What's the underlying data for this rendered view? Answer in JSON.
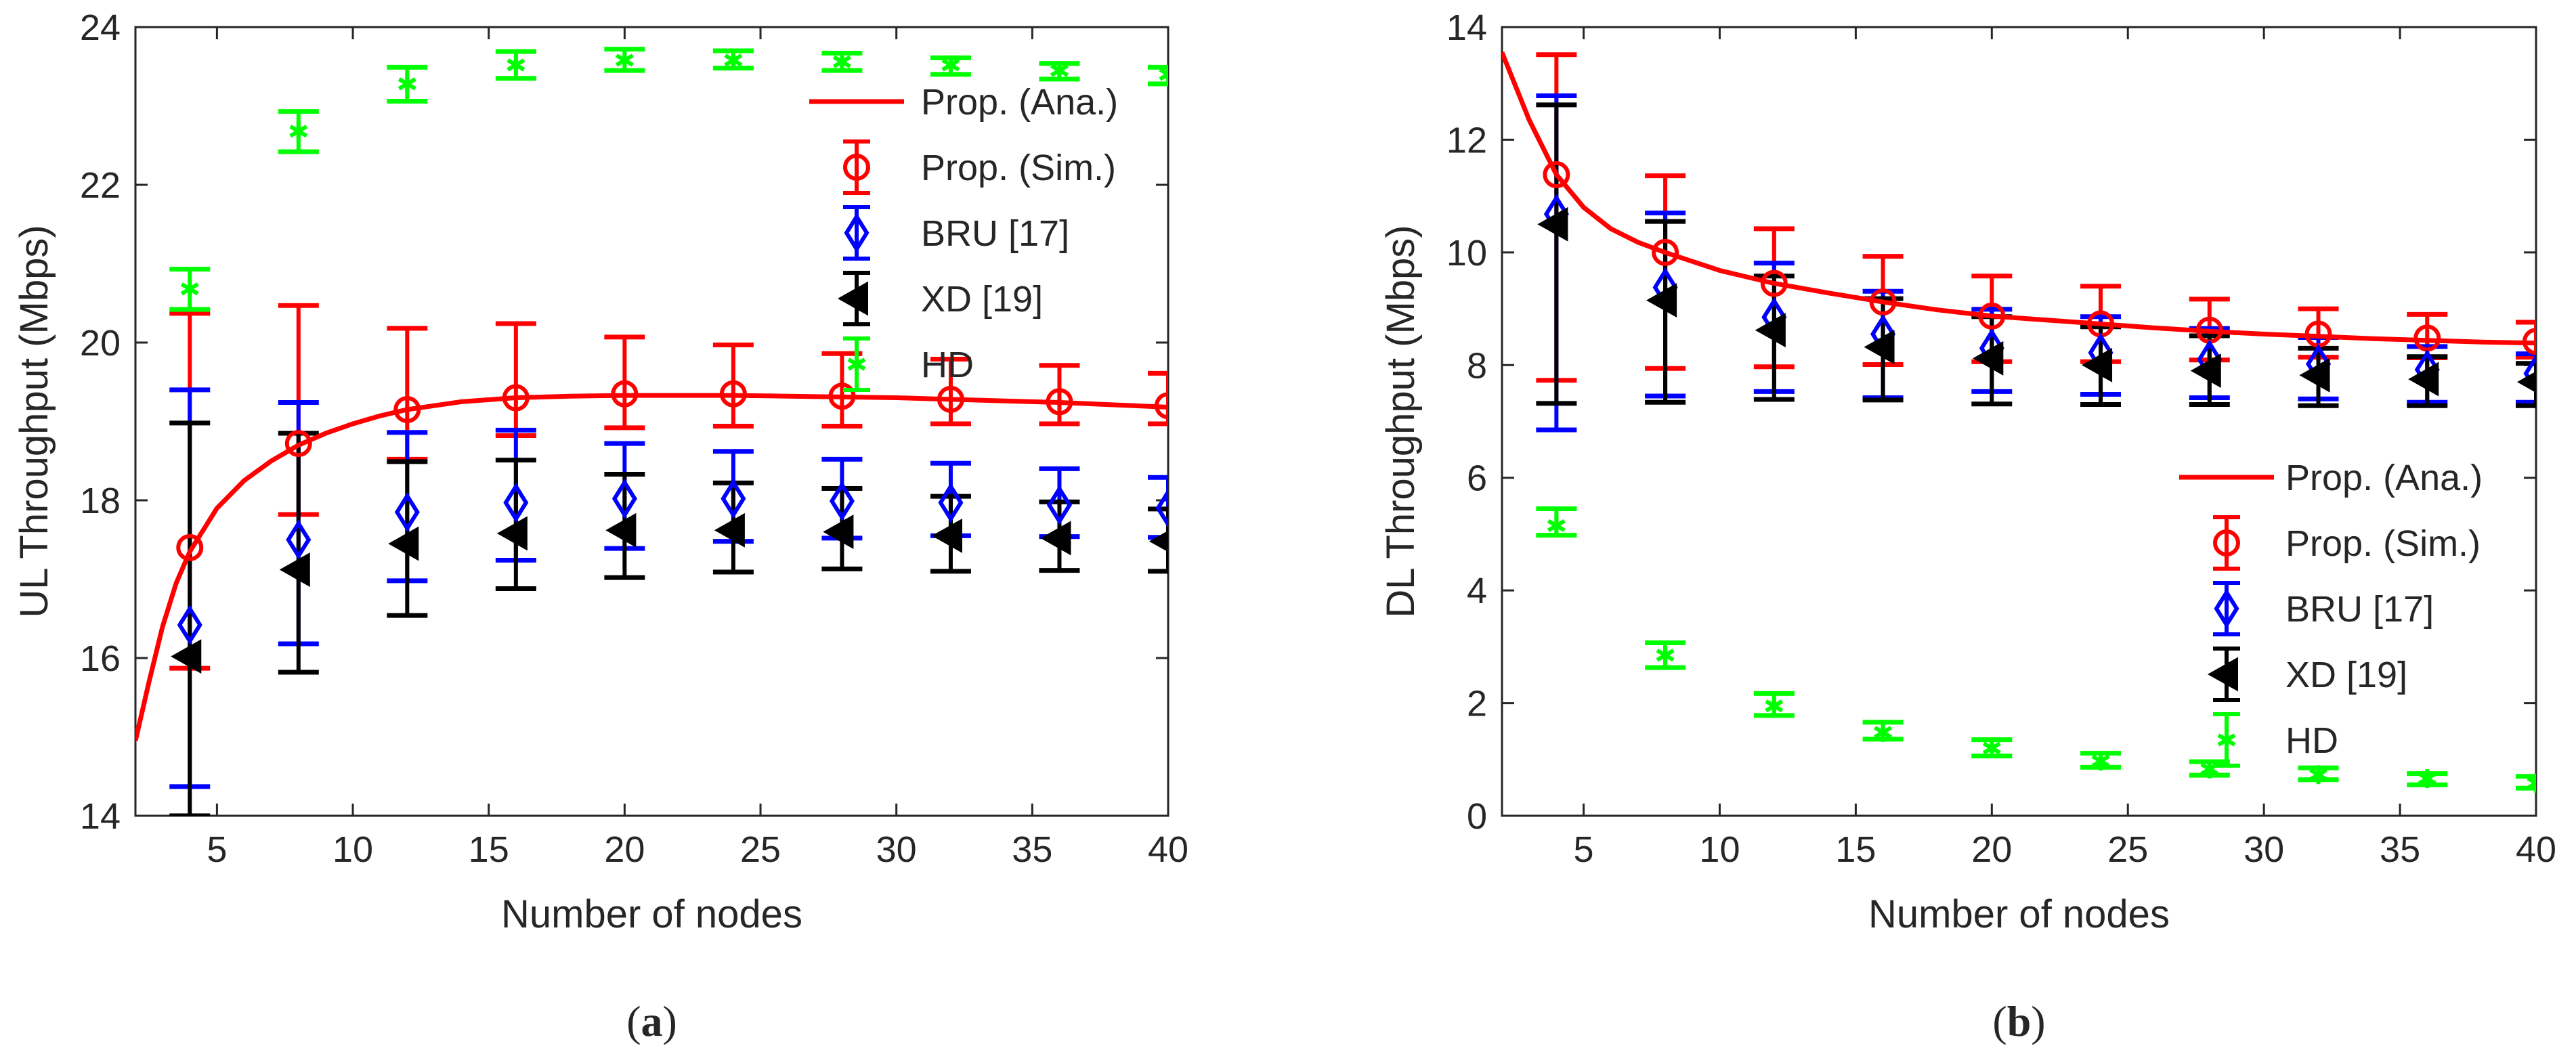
{
  "chart_data": [
    {
      "type": "line",
      "panel_label": "(a)",
      "panel_label_bold": "a",
      "xlabel": "Number of nodes",
      "ylabel": "UL Throughput (Mbps)",
      "xlim": [
        2,
        40
      ],
      "ylim": [
        14,
        24
      ],
      "xticks": [
        5,
        10,
        15,
        20,
        25,
        30,
        35,
        40
      ],
      "yticks": [
        14,
        16,
        18,
        20,
        22,
        24
      ],
      "legend_position": "top-right",
      "colors": {
        "prop": "#ff0000",
        "bru": "#0000ff",
        "xd": "#000000",
        "hd": "#00ff00"
      },
      "analytic": {
        "name": "Prop. (Ana.)",
        "x": [
          2,
          2.5,
          3,
          3.5,
          4,
          5,
          6,
          7,
          8,
          9,
          10,
          11,
          12,
          14,
          16,
          18,
          20,
          22,
          24,
          26,
          28,
          30,
          32,
          34,
          36,
          38,
          40
        ],
        "y": [
          14.95,
          15.7,
          16.4,
          16.95,
          17.35,
          17.9,
          18.25,
          18.5,
          18.7,
          18.85,
          18.97,
          19.07,
          19.15,
          19.25,
          19.3,
          19.32,
          19.33,
          19.33,
          19.33,
          19.32,
          19.31,
          19.3,
          19.28,
          19.26,
          19.24,
          19.21,
          19.18
        ]
      },
      "series": [
        {
          "name": "Prop. (Sim.)",
          "marker": "circle",
          "color": "#ff0000",
          "x": [
            4,
            8,
            12,
            16,
            20,
            24,
            28,
            32,
            36,
            40
          ],
          "y": [
            17.4,
            18.72,
            19.15,
            19.3,
            19.35,
            19.35,
            19.32,
            19.28,
            19.25,
            19.2
          ],
          "lower": [
            15.87,
            17.82,
            18.52,
            18.82,
            18.92,
            18.94,
            18.94,
            18.97,
            18.97,
            18.97
          ],
          "upper": [
            20.37,
            20.47,
            20.18,
            20.24,
            20.07,
            19.97,
            19.86,
            19.79,
            19.71,
            19.61
          ]
        },
        {
          "name": "BRU [17]",
          "marker": "diamond",
          "color": "#0000ff",
          "x": [
            4,
            8,
            12,
            16,
            20,
            24,
            28,
            32,
            36,
            40
          ],
          "y": [
            16.42,
            17.5,
            17.85,
            17.97,
            18.02,
            18.02,
            17.99,
            17.97,
            17.94,
            17.9
          ],
          "lower": [
            14.37,
            16.18,
            16.98,
            17.24,
            17.39,
            17.48,
            17.52,
            17.55,
            17.54,
            17.53
          ],
          "upper": [
            19.4,
            19.24,
            18.86,
            18.89,
            18.72,
            18.62,
            18.52,
            18.47,
            18.4,
            18.29
          ]
        },
        {
          "name": "XD [19]",
          "marker": "triangle-left",
          "color": "#000000",
          "x": [
            4,
            8,
            12,
            16,
            20,
            24,
            28,
            32,
            36,
            40
          ],
          "y": [
            16.02,
            17.12,
            17.45,
            17.58,
            17.62,
            17.62,
            17.6,
            17.55,
            17.52,
            17.48
          ],
          "lower": [
            14.0,
            15.82,
            16.54,
            16.88,
            17.02,
            17.09,
            17.13,
            17.1,
            17.11,
            17.1
          ],
          "upper": [
            18.98,
            18.85,
            18.49,
            18.51,
            18.33,
            18.22,
            18.15,
            18.05,
            17.98,
            17.89
          ]
        },
        {
          "name": "HD",
          "marker": "asterisk",
          "color": "#00ff00",
          "x": [
            4,
            8,
            12,
            16,
            20,
            24,
            28,
            32,
            36,
            40
          ],
          "y": [
            20.68,
            22.68,
            23.28,
            23.52,
            23.58,
            23.58,
            23.56,
            23.52,
            23.45,
            23.4
          ],
          "lower": [
            20.42,
            22.42,
            23.06,
            23.35,
            23.45,
            23.48,
            23.45,
            23.4,
            23.34,
            23.28
          ],
          "upper": [
            20.93,
            22.93,
            23.49,
            23.69,
            23.72,
            23.7,
            23.67,
            23.61,
            23.54,
            23.49
          ]
        }
      ]
    },
    {
      "type": "line",
      "panel_label": "(b)",
      "panel_label_bold": "b",
      "xlabel": "Number of nodes",
      "ylabel": "DL Throughput (Mbps)",
      "xlim": [
        2,
        40
      ],
      "ylim": [
        0,
        14
      ],
      "xticks": [
        5,
        10,
        15,
        20,
        25,
        30,
        35,
        40
      ],
      "yticks": [
        0,
        2,
        4,
        6,
        8,
        10,
        12,
        14
      ],
      "legend_position": "right",
      "colors": {
        "prop": "#ff0000",
        "bru": "#0000ff",
        "xd": "#000000",
        "hd": "#00ff00"
      },
      "analytic": {
        "name": "Prop. (Ana.)",
        "x": [
          2,
          3,
          4,
          5,
          6,
          7,
          8,
          10,
          12,
          14,
          16,
          18,
          20,
          22,
          24,
          26,
          28,
          30,
          32,
          34,
          36,
          38,
          40
        ],
        "y": [
          13.55,
          12.35,
          11.38,
          10.8,
          10.42,
          10.18,
          10.0,
          9.68,
          9.45,
          9.28,
          9.12,
          8.98,
          8.87,
          8.8,
          8.73,
          8.66,
          8.6,
          8.55,
          8.51,
          8.47,
          8.44,
          8.41,
          8.39
        ]
      },
      "series": [
        {
          "name": "Prop. (Sim.)",
          "marker": "circle",
          "color": "#ff0000",
          "x": [
            4,
            8,
            12,
            16,
            20,
            24,
            28,
            32,
            36,
            40
          ],
          "y": [
            11.38,
            10.0,
            9.45,
            9.12,
            8.87,
            8.73,
            8.62,
            8.55,
            8.48,
            8.42
          ],
          "lower": [
            7.73,
            7.94,
            7.97,
            8.01,
            8.06,
            8.06,
            8.09,
            8.14,
            8.13,
            8.14
          ],
          "upper": [
            13.51,
            11.36,
            10.42,
            9.93,
            9.58,
            9.4,
            9.17,
            9.0,
            8.9,
            8.76
          ]
        },
        {
          "name": "BRU [17]",
          "marker": "diamond",
          "color": "#0000ff",
          "x": [
            4,
            8,
            12,
            16,
            20,
            24,
            28,
            32,
            36,
            40
          ],
          "y": [
            10.68,
            9.38,
            8.85,
            8.55,
            8.3,
            8.22,
            8.1,
            8.02,
            7.92,
            7.85
          ],
          "lower": [
            6.85,
            7.45,
            7.53,
            7.42,
            7.53,
            7.48,
            7.42,
            7.4,
            7.34,
            7.34
          ],
          "upper": [
            12.78,
            10.7,
            9.81,
            9.31,
            8.99,
            8.86,
            8.65,
            8.49,
            8.33,
            8.2
          ]
        },
        {
          "name": "XD [19]",
          "marker": "triangle-left",
          "color": "#000000",
          "x": [
            4,
            8,
            12,
            16,
            20,
            24,
            28,
            32,
            36,
            40
          ],
          "y": [
            10.5,
            9.15,
            8.62,
            8.32,
            8.12,
            8.0,
            7.9,
            7.82,
            7.75,
            7.7
          ],
          "lower": [
            7.32,
            7.34,
            7.39,
            7.38,
            7.31,
            7.3,
            7.3,
            7.28,
            7.28,
            7.28
          ],
          "upper": [
            12.62,
            10.55,
            9.58,
            9.18,
            8.86,
            8.68,
            8.52,
            8.3,
            8.15,
            8.03
          ]
        },
        {
          "name": "HD",
          "marker": "asterisk",
          "color": "#00ff00",
          "x": [
            4,
            8,
            12,
            16,
            20,
            24,
            28,
            32,
            36,
            40
          ],
          "y": [
            5.15,
            2.85,
            1.95,
            1.48,
            1.2,
            0.97,
            0.83,
            0.73,
            0.66,
            0.58
          ],
          "lower": [
            4.98,
            2.63,
            1.78,
            1.36,
            1.06,
            0.86,
            0.72,
            0.64,
            0.55,
            0.49
          ],
          "upper": [
            5.45,
            3.07,
            2.17,
            1.66,
            1.35,
            1.11,
            0.96,
            0.85,
            0.75,
            0.7
          ]
        }
      ]
    }
  ]
}
